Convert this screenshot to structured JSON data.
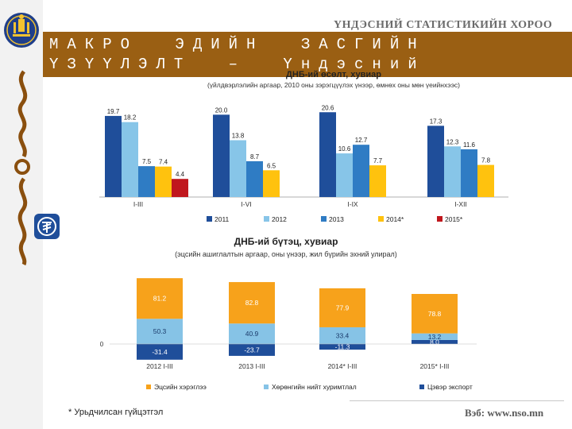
{
  "header": {
    "org_name": "ҮНДЭСНИЙ СТАТИСТИКИЙН ХОРОО",
    "banner_title": "МАКРО ЭДИЙН ЗАСГИЙН ҮЗҮҮЛЭЛТ – Үндэсний тооцоо",
    "logo_text": "ҮНДЭСНИЙ СТАТИСТИК"
  },
  "footer": {
    "footnote": "* Урьдчилсан гүйцэтгэл",
    "website": "Вэб: www.nso.mn"
  },
  "colors": {
    "s2011": "#1f4e9a",
    "s2012": "#87c5e8",
    "s2013": "#2f7cc4",
    "s2014": "#ffc20e",
    "s2015": "#c0171d",
    "consumption": "#f7a21b",
    "investment": "#86c3e6",
    "netexport": "#1f4e9a",
    "banner": "#9a5f13"
  },
  "chart_data": [
    {
      "type": "bar",
      "title": "ДНБ-ий өсөлт, хувиар",
      "subtitle": "(үйлдвэрлэлийн аргаар, 2010 оны зэрэгцүүлэх үнээр, өмнөх оны мөн үеийнхээс)",
      "categories": [
        "I-III",
        "I-VI",
        "I-IX",
        "I-XII"
      ],
      "series": [
        {
          "name": "2011",
          "values": [
            19.7,
            20.0,
            20.6,
            17.3
          ]
        },
        {
          "name": "2012",
          "values": [
            18.2,
            13.8,
            10.6,
            12.3
          ]
        },
        {
          "name": "2013",
          "values": [
            7.5,
            8.7,
            12.7,
            11.6
          ]
        },
        {
          "name": "2014*",
          "values": [
            7.4,
            6.5,
            7.7,
            7.8
          ]
        },
        {
          "name": "2015*",
          "values": [
            4.4,
            null,
            null,
            null
          ]
        }
      ],
      "labels": [
        [
          "19.7",
          "20.0",
          "20.6",
          "17.3"
        ],
        [
          "18.2",
          "13.8",
          "10.6",
          "12.3"
        ],
        [
          "7.5",
          "8.7",
          "12.7",
          "11.6"
        ],
        [
          "7.4",
          "6.5",
          "7.7",
          "7.8"
        ],
        [
          "4.4",
          "",
          "",
          ""
        ]
      ],
      "ylim": [
        0,
        22
      ],
      "legend_position": "bottom"
    },
    {
      "type": "bar",
      "stacked": true,
      "title": "ДНБ-ий бүтэц, хувиар",
      "subtitle": "(эцсийн ашиглалтын аргаар, оны үнээр, жил бүрийн эхний улирал)",
      "zero_label": "0",
      "categories": [
        "2012 I-III",
        "2013 I-III",
        "2014* I-III",
        "2015* I-III"
      ],
      "series": [
        {
          "name": "Эцсийн хэрэглээ",
          "values": [
            81.2,
            82.8,
            77.9,
            78.8
          ]
        },
        {
          "name": "Хөрөнгийн нийт хуримтлал",
          "values": [
            50.3,
            40.9,
            33.4,
            13.2
          ]
        },
        {
          "name": "Цэвэр экспорт",
          "values": [
            -31.4,
            -23.7,
            -11.3,
            8.0
          ]
        }
      ],
      "labels": [
        [
          "81.2",
          "82.8",
          "77.9",
          "78.8"
        ],
        [
          "50.3",
          "40.9",
          "33.4",
          "13.2"
        ],
        [
          "-31.4",
          "-23.7",
          "-11.3",
          "8.0"
        ]
      ],
      "legend_position": "bottom"
    }
  ]
}
